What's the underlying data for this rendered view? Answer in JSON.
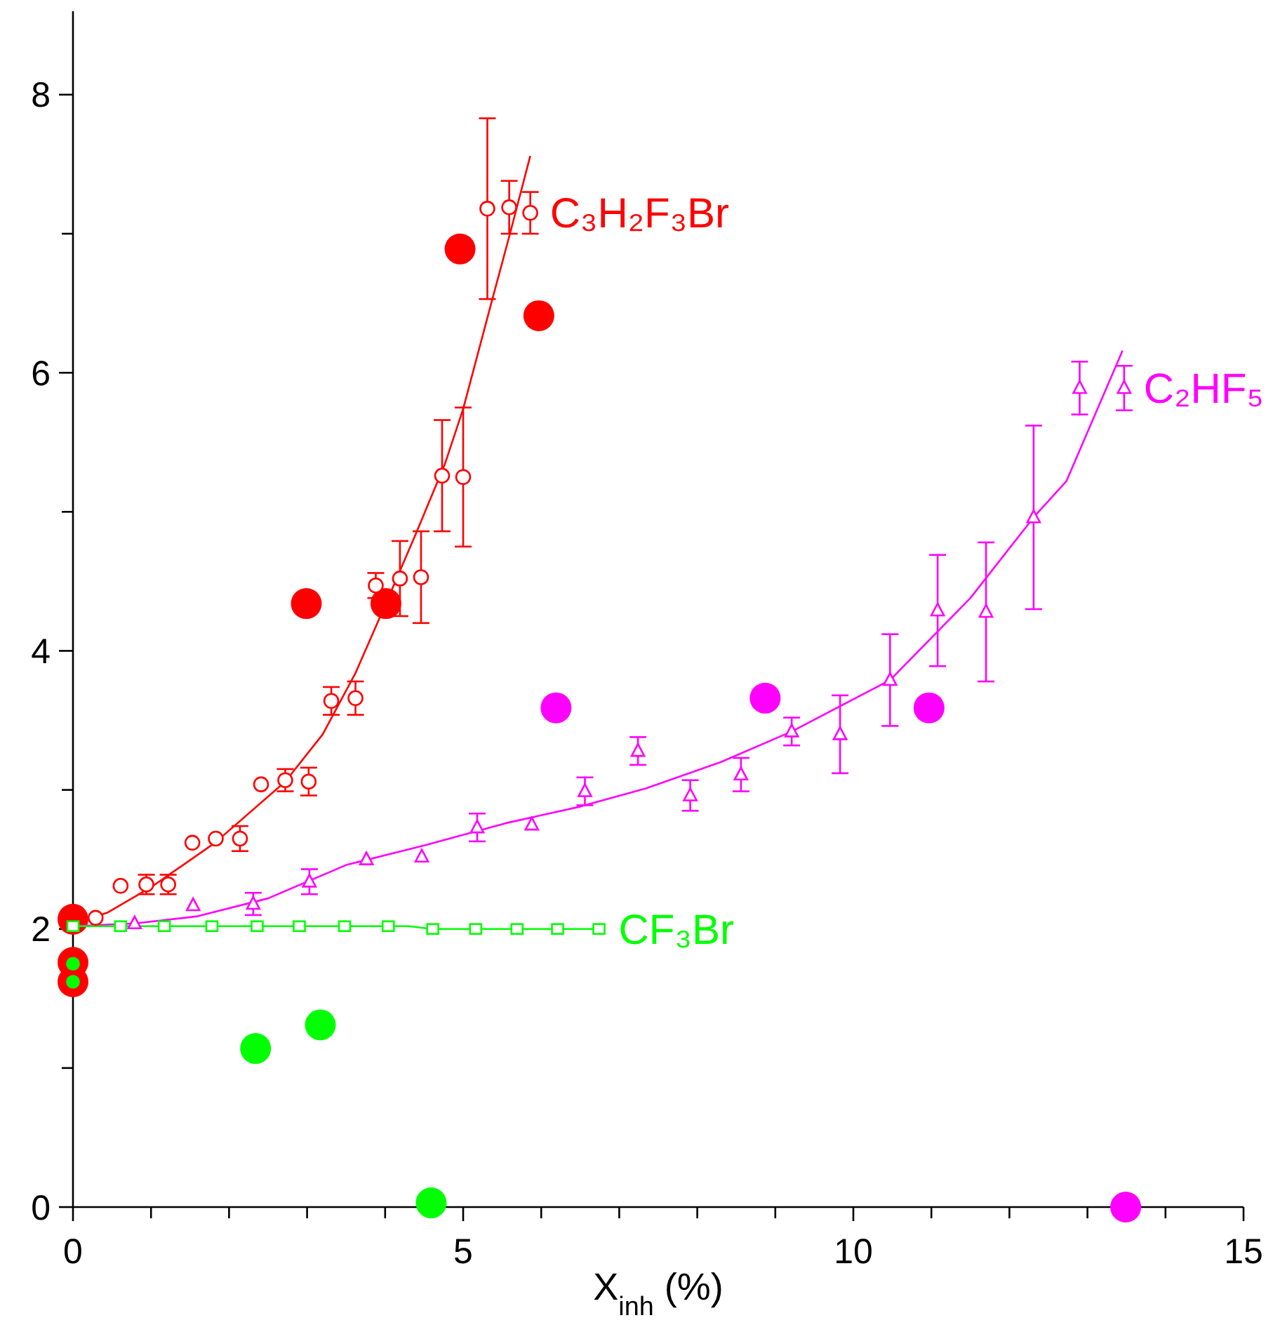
{
  "chart_data": {
    "type": "scatter",
    "xlabel": "X$_{inh}$ (%)",
    "xlim": [
      0,
      15
    ],
    "ylim": [
      0,
      8.6
    ],
    "xticks": [
      0,
      {
        "value": 1,
        "label": null
      },
      {
        "value": 2,
        "label": null
      },
      {
        "value": 3,
        "label": null
      },
      {
        "value": 4,
        "label": null
      },
      5,
      {
        "value": 6,
        "label": null
      },
      {
        "value": 7,
        "label": null
      },
      {
        "value": 8,
        "label": null
      },
      {
        "value": 9,
        "label": null
      },
      10,
      {
        "value": 11,
        "label": null
      },
      {
        "value": 12,
        "label": null
      },
      {
        "value": 13,
        "label": null
      },
      {
        "value": 14,
        "label": null
      },
      15
    ],
    "yticks": [
      0,
      {
        "value": 1,
        "label": null
      },
      2,
      {
        "value": 3,
        "label": null
      },
      4,
      {
        "value": 5,
        "label": null
      },
      6,
      {
        "value": 7,
        "label": null
      },
      8
    ],
    "grid": false,
    "series": [
      {
        "type": "line",
        "color": "#ff0000",
        "marker": "none",
        "line_style": "solid",
        "x": [
          0,
          0.45,
          1,
          1.82,
          2.72,
          3.2,
          3.62,
          4.01,
          4.4,
          4.77,
          5.0,
          5.36,
          5.6,
          5.86
        ],
        "values": [
          2.03,
          2.12,
          2.3,
          2.62,
          3.06,
          3.4,
          3.84,
          4.34,
          4.85,
          5.35,
          5.74,
          6.5,
          7.0,
          7.56
        ]
      },
      {
        "type": "line",
        "color": "#ff00ff",
        "marker": "none",
        "line_style": "solid",
        "x": [
          0,
          0.8,
          1.58,
          2.5,
          3.5,
          4.5,
          5.54,
          6.5,
          7.34,
          8.3,
          9.21,
          10.47,
          11.5,
          12.31,
          12.73,
          13.45
        ],
        "values": [
          2.02,
          2.04,
          2.09,
          2.22,
          2.46,
          2.6,
          2.76,
          2.88,
          3.01,
          3.2,
          3.42,
          3.79,
          4.38,
          4.96,
          5.22,
          6.16
        ]
      },
      {
        "type": "line",
        "color": "#00ff00",
        "marker": "none",
        "line_style": "solid",
        "x": [
          0,
          4.3,
          4.6,
          6.8
        ],
        "values": [
          2.02,
          2.02,
          2.0,
          2.0
        ]
      },
      {
        "name": "C₃H₂F₃Br",
        "color": "#ff0000",
        "marker": "circle",
        "x": [
          0.29,
          0.61,
          0.94,
          1.22,
          1.53,
          1.83,
          2.14,
          2.41,
          2.72,
          3.02,
          3.31,
          3.62,
          3.88,
          4.19,
          4.46,
          4.73,
          5.0,
          5.31,
          5.59,
          5.86
        ],
        "values": [
          2.08,
          2.31,
          2.32,
          2.32,
          2.62,
          2.65,
          2.65,
          3.04,
          3.07,
          3.06,
          3.64,
          3.66,
          4.47,
          4.52,
          4.53,
          5.26,
          5.25,
          7.18,
          7.19,
          7.15
        ],
        "errors": [
          null,
          null,
          0.07,
          0.07,
          null,
          null,
          0.09,
          null,
          0.08,
          0.1,
          0.1,
          0.12,
          0.09,
          0.27,
          0.33,
          0.4,
          0.5,
          0.65,
          0.19,
          0.15
        ]
      },
      {
        "name": "C₂HF₅",
        "color": "#ff00ff",
        "marker": "triangle",
        "x": [
          0.79,
          1.54,
          2.31,
          3.03,
          3.76,
          4.47,
          5.18,
          5.88,
          6.56,
          7.24,
          7.91,
          8.56,
          9.21,
          9.83,
          10.47,
          11.08,
          11.7,
          12.31,
          12.9,
          13.47
        ],
        "values": [
          2.04,
          2.17,
          2.18,
          2.34,
          2.5,
          2.52,
          2.73,
          2.75,
          2.99,
          3.28,
          2.96,
          3.11,
          3.42,
          3.4,
          3.79,
          4.29,
          4.28,
          4.96,
          5.89,
          5.89
        ],
        "errors": [
          null,
          null,
          0.08,
          0.09,
          null,
          null,
          0.1,
          null,
          0.1,
          0.1,
          0.11,
          0.12,
          0.1,
          0.28,
          0.33,
          0.4,
          0.5,
          0.66,
          0.19,
          0.16
        ]
      },
      {
        "name": "CF₃Br",
        "color": "#00ff00",
        "marker": "square",
        "x": [
          0,
          0.61,
          1.17,
          1.78,
          2.36,
          2.9,
          3.48,
          4.04,
          4.61,
          5.16,
          5.69,
          6.21,
          6.74
        ],
        "values": [
          2.02,
          2.02,
          2.02,
          2.02,
          2.02,
          2.02,
          2.02,
          2.02,
          2.0,
          2.0,
          2.0,
          2.0,
          2.0
        ]
      },
      {
        "type": "bubble",
        "color": "#ff0000",
        "x": [
          0,
          0,
          0,
          2.99,
          4.01,
          4.96,
          5.97
        ],
        "values": [
          2.07,
          1.76,
          1.62,
          4.34,
          4.34,
          6.89,
          6.41
        ],
        "sizes": [
          1,
          1,
          1,
          1,
          1,
          1,
          1
        ]
      },
      {
        "type": "bubble",
        "color": "#ff00ff",
        "x": [
          6.19,
          8.87,
          10.97,
          13.49
        ],
        "values": [
          3.59,
          3.66,
          3.59,
          0.0
        ],
        "sizes": [
          1,
          1,
          1,
          1
        ]
      },
      {
        "type": "bubble",
        "color": "#00ff00",
        "x": [
          0,
          0,
          2.34,
          3.17,
          4.59
        ],
        "values": [
          1.75,
          1.62,
          1.14,
          1.31,
          0.03
        ],
        "sizes": [
          0.2,
          0.2,
          1,
          1,
          1
        ]
      }
    ]
  }
}
